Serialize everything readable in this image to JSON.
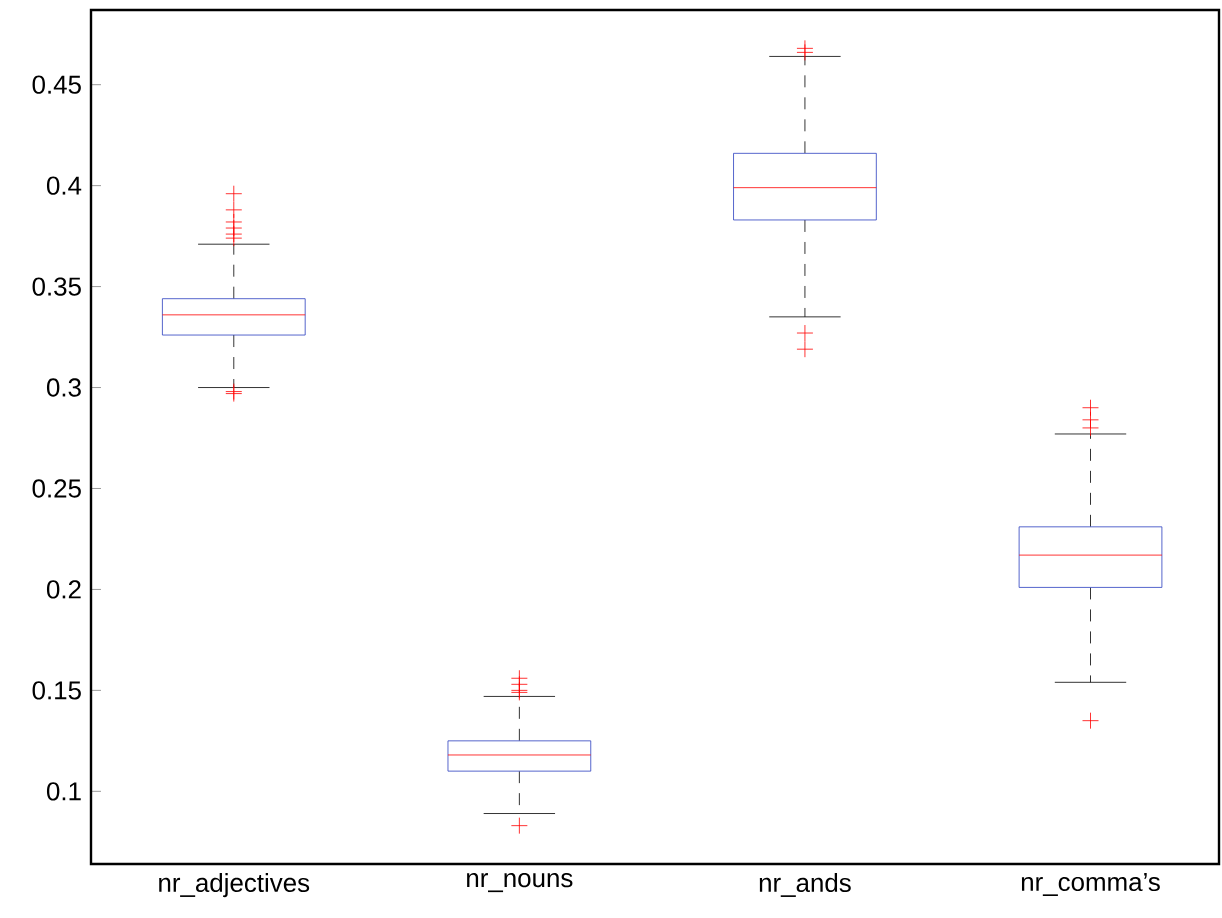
{
  "chart_data": {
    "type": "box",
    "categories": [
      "nr_adjectives",
      "nr_nouns",
      "nr_ands",
      "nr_comma’s"
    ],
    "ylim": [
      0.064,
      0.487
    ],
    "yticks": [
      0.1,
      0.15,
      0.2,
      0.25,
      0.3,
      0.35,
      0.4,
      0.45
    ],
    "color": "#2b3fbf",
    "boxes": [
      {
        "low": 0.3,
        "q1": 0.326,
        "median": 0.336,
        "q3": 0.344,
        "high": 0.371,
        "outliers": [
          0.396,
          0.388,
          0.382,
          0.379,
          0.376,
          0.374,
          0.298,
          0.297
        ]
      },
      {
        "low": 0.089,
        "q1": 0.11,
        "median": 0.118,
        "q3": 0.125,
        "high": 0.147,
        "outliers": [
          0.156,
          0.153,
          0.15,
          0.149,
          0.083
        ]
      },
      {
        "low": 0.335,
        "q1": 0.383,
        "median": 0.399,
        "q3": 0.416,
        "high": 0.464,
        "outliers": [
          0.468,
          0.466,
          0.327,
          0.319
        ]
      },
      {
        "low": 0.154,
        "q1": 0.201,
        "median": 0.217,
        "q3": 0.231,
        "high": 0.277,
        "outliers": [
          0.29,
          0.284,
          0.28,
          0.135
        ]
      }
    ],
    "marker": "cross"
  }
}
